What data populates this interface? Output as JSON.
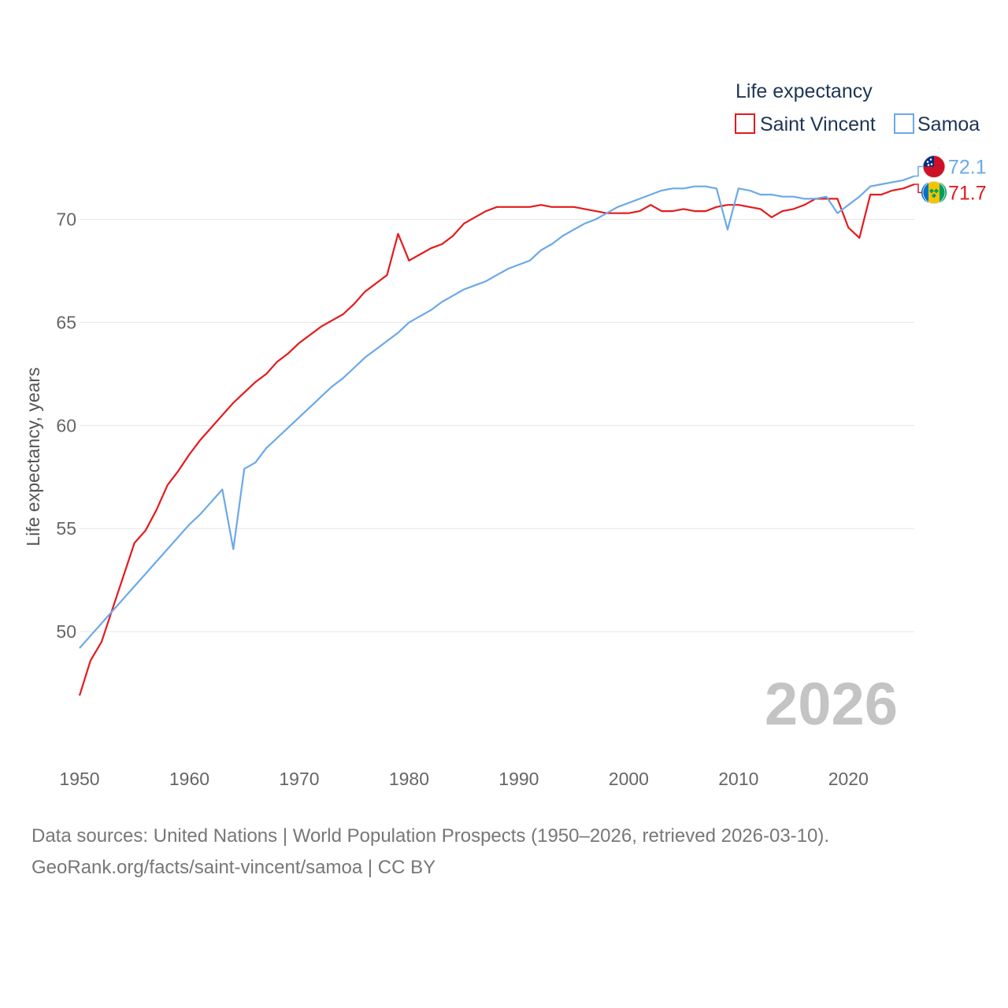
{
  "chart_data": {
    "type": "line",
    "title": "Life expectancy",
    "xlabel": "",
    "ylabel": "Life expectancy, years",
    "xlim": [
      1950,
      2026
    ],
    "ylim": [
      45,
      73
    ],
    "x_ticks": [
      1950,
      1960,
      1970,
      1980,
      1990,
      2000,
      2010,
      2020
    ],
    "y_ticks": [
      50,
      55,
      60,
      65,
      70
    ],
    "grid": true,
    "legend_position": "top-right",
    "current_year": "2026",
    "x": [
      1950,
      1951,
      1952,
      1953,
      1954,
      1955,
      1956,
      1957,
      1958,
      1959,
      1960,
      1961,
      1962,
      1963,
      1964,
      1965,
      1966,
      1967,
      1968,
      1969,
      1970,
      1971,
      1972,
      1973,
      1974,
      1975,
      1976,
      1977,
      1978,
      1979,
      1980,
      1981,
      1982,
      1983,
      1984,
      1985,
      1986,
      1987,
      1988,
      1989,
      1990,
      1991,
      1992,
      1993,
      1994,
      1995,
      1996,
      1997,
      1998,
      1999,
      2000,
      2001,
      2002,
      2003,
      2004,
      2005,
      2006,
      2007,
      2008,
      2009,
      2010,
      2011,
      2012,
      2013,
      2014,
      2015,
      2016,
      2017,
      2018,
      2019,
      2020,
      2021,
      2022,
      2023,
      2024,
      2025,
      2026
    ],
    "series": [
      {
        "name": "Saint Vincent",
        "color": "#e41a1c",
        "end_value": "71.7",
        "flag_icon": "saint-vincent-flag-icon",
        "values": [
          46.9,
          48.6,
          49.5,
          51.1,
          52.7,
          54.3,
          54.9,
          55.9,
          57.1,
          57.8,
          58.6,
          59.3,
          59.9,
          60.5,
          61.1,
          61.6,
          62.1,
          62.5,
          63.1,
          63.5,
          64.0,
          64.4,
          64.8,
          65.1,
          65.4,
          65.9,
          66.5,
          66.9,
          67.3,
          69.3,
          68.0,
          68.3,
          68.6,
          68.8,
          69.2,
          69.8,
          70.1,
          70.4,
          70.6,
          70.6,
          70.6,
          70.6,
          70.7,
          70.6,
          70.6,
          70.6,
          70.5,
          70.4,
          70.3,
          70.3,
          70.3,
          70.4,
          70.7,
          70.4,
          70.4,
          70.5,
          70.4,
          70.4,
          70.6,
          70.7,
          70.7,
          70.6,
          70.5,
          70.1,
          70.4,
          70.5,
          70.7,
          71.0,
          71.0,
          71.0,
          69.6,
          69.1,
          71.2,
          71.2,
          71.4,
          71.5,
          71.7
        ]
      },
      {
        "name": "Samoa",
        "color": "#6aa9e9",
        "end_value": "72.1",
        "flag_icon": "samoa-flag-icon",
        "values": [
          49.2,
          49.8,
          50.4,
          51.0,
          51.6,
          52.2,
          52.8,
          53.4,
          54.0,
          54.6,
          55.2,
          55.7,
          56.3,
          56.9,
          54.0,
          57.9,
          58.2,
          58.9,
          59.4,
          59.9,
          60.4,
          60.9,
          61.4,
          61.9,
          62.3,
          62.8,
          63.3,
          63.7,
          64.1,
          64.5,
          65.0,
          65.3,
          65.6,
          66.0,
          66.3,
          66.6,
          66.8,
          67.0,
          67.3,
          67.6,
          67.8,
          68.0,
          68.5,
          68.8,
          69.2,
          69.5,
          69.8,
          70.0,
          70.3,
          70.6,
          70.8,
          71.0,
          71.2,
          71.4,
          71.5,
          71.5,
          71.6,
          71.6,
          71.5,
          69.5,
          71.5,
          71.4,
          71.2,
          71.2,
          71.1,
          71.1,
          71.0,
          71.0,
          71.1,
          70.3,
          70.7,
          71.1,
          71.6,
          71.7,
          71.8,
          71.9,
          72.1
        ]
      }
    ]
  },
  "source": {
    "line1": "Data sources: United Nations | World Population Prospects (1950–2026, retrieved 2026-03-10).",
    "line2": "GeoRank.org/facts/saint-vincent/samoa | CC BY"
  }
}
